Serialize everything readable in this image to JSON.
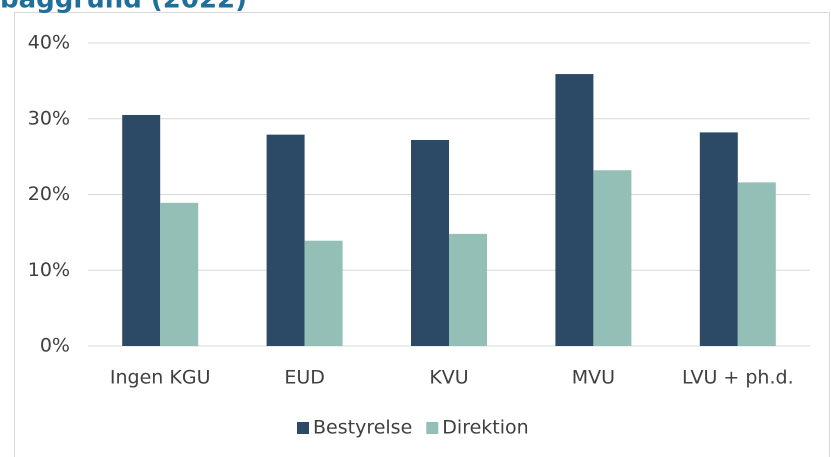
{
  "chart_data": {
    "type": "bar",
    "title": "baggrund (2022)",
    "categories": [
      "Ingen KGU",
      "EUD",
      "KVU",
      "MVU",
      "LVU + ph.d."
    ],
    "series": [
      {
        "name": "Bestyrelse",
        "color": "#2c4a66",
        "values": [
          30.5,
          27.9,
          27.2,
          35.9,
          28.2
        ]
      },
      {
        "name": "Direktion",
        "color": "#94bfb6",
        "values": [
          18.9,
          13.9,
          14.8,
          23.2,
          21.6
        ]
      }
    ],
    "ylim": [
      0,
      40
    ],
    "yticks": [
      {
        "value": 0,
        "label": "0%"
      },
      {
        "value": 10,
        "label": "10%"
      },
      {
        "value": 20,
        "label": "20%"
      },
      {
        "value": 30,
        "label": "30%"
      },
      {
        "value": 40,
        "label": "40%"
      }
    ],
    "grid": true,
    "legend": "bottom"
  }
}
